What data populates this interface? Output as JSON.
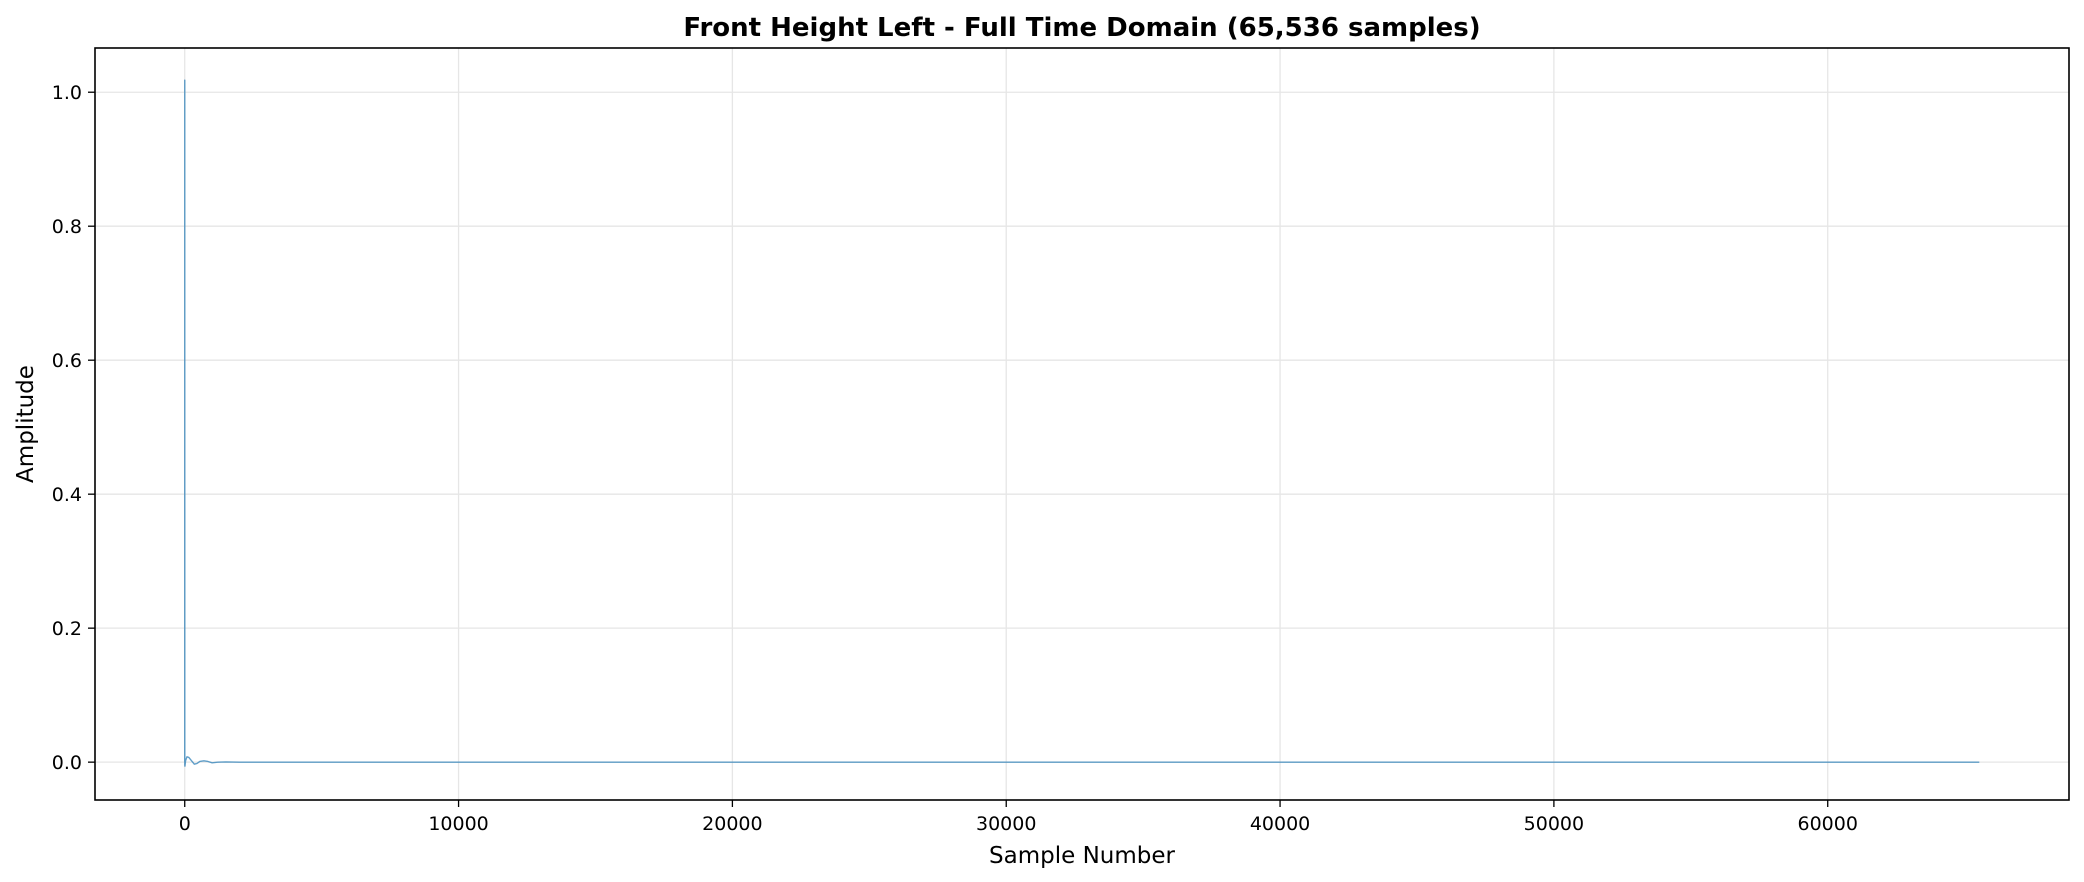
{
  "chart_data": {
    "type": "line",
    "title": "Front Height Left - Full Time Domain (65,536 samples)",
    "xlabel": "Sample Number",
    "ylabel": "Amplitude",
    "xlim": [
      -3277,
      68811
    ],
    "ylim": [
      -0.0565,
      1.066
    ],
    "xticks": [
      0,
      10000,
      20000,
      30000,
      40000,
      50000,
      60000
    ],
    "xtick_labels": [
      "0",
      "10000",
      "20000",
      "30000",
      "40000",
      "50000",
      "60000"
    ],
    "yticks": [
      0.0,
      0.2,
      0.4,
      0.6,
      0.8,
      1.0
    ],
    "ytick_labels": [
      "0.0",
      "0.2",
      "0.4",
      "0.6",
      "0.8",
      "1.0"
    ],
    "grid": true,
    "legend": "none",
    "colors": {
      "line": "#1f77b4",
      "grid": "#e6e6e6",
      "axes": "#000000"
    },
    "series": [
      {
        "x": [
          0,
          1,
          2,
          8,
          30,
          80,
          150,
          250,
          350,
          450,
          550,
          700,
          850,
          1000,
          1200,
          1500,
          2000,
          3000,
          10000,
          20000,
          30000,
          40000,
          50000,
          60000,
          65535
        ],
        "y": [
          0.0,
          1.018,
          -0.004,
          -0.006,
          0.002,
          0.008,
          0.007,
          0.002,
          -0.003,
          -0.002,
          0.001,
          0.002,
          0.001,
          -0.001,
          0.0,
          0.0003,
          0.0,
          0.0,
          0.0,
          0.0,
          0.0,
          0.0,
          0.0,
          0.0,
          0.0
        ]
      }
    ]
  }
}
